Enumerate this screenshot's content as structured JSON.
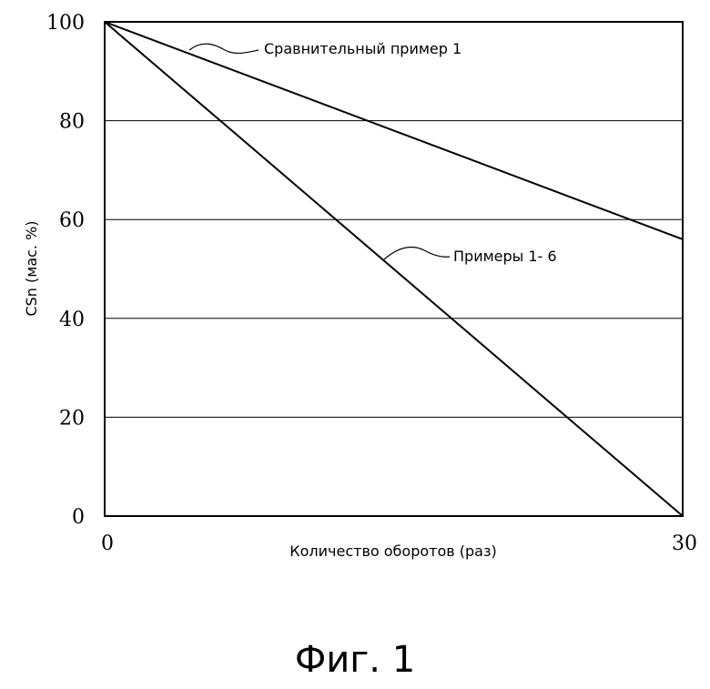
{
  "caption": "Фиг. 1",
  "chart_data": {
    "type": "line",
    "xlabel": "Количество оборотов (раз)",
    "ylabel": "CSn (мас. %)",
    "xlim": [
      0,
      30
    ],
    "ylim": [
      0,
      100
    ],
    "x_ticks": [
      0,
      30
    ],
    "y_ticks": [
      0,
      20,
      40,
      60,
      80,
      100
    ],
    "grid": "horizontal",
    "series": [
      {
        "name": "Сравнительный пример 1",
        "x": [
          0,
          30
        ],
        "y": [
          100,
          56
        ]
      },
      {
        "name": "Примеры 1- 6",
        "x": [
          0,
          30
        ],
        "y": [
          100,
          0
        ]
      }
    ]
  }
}
